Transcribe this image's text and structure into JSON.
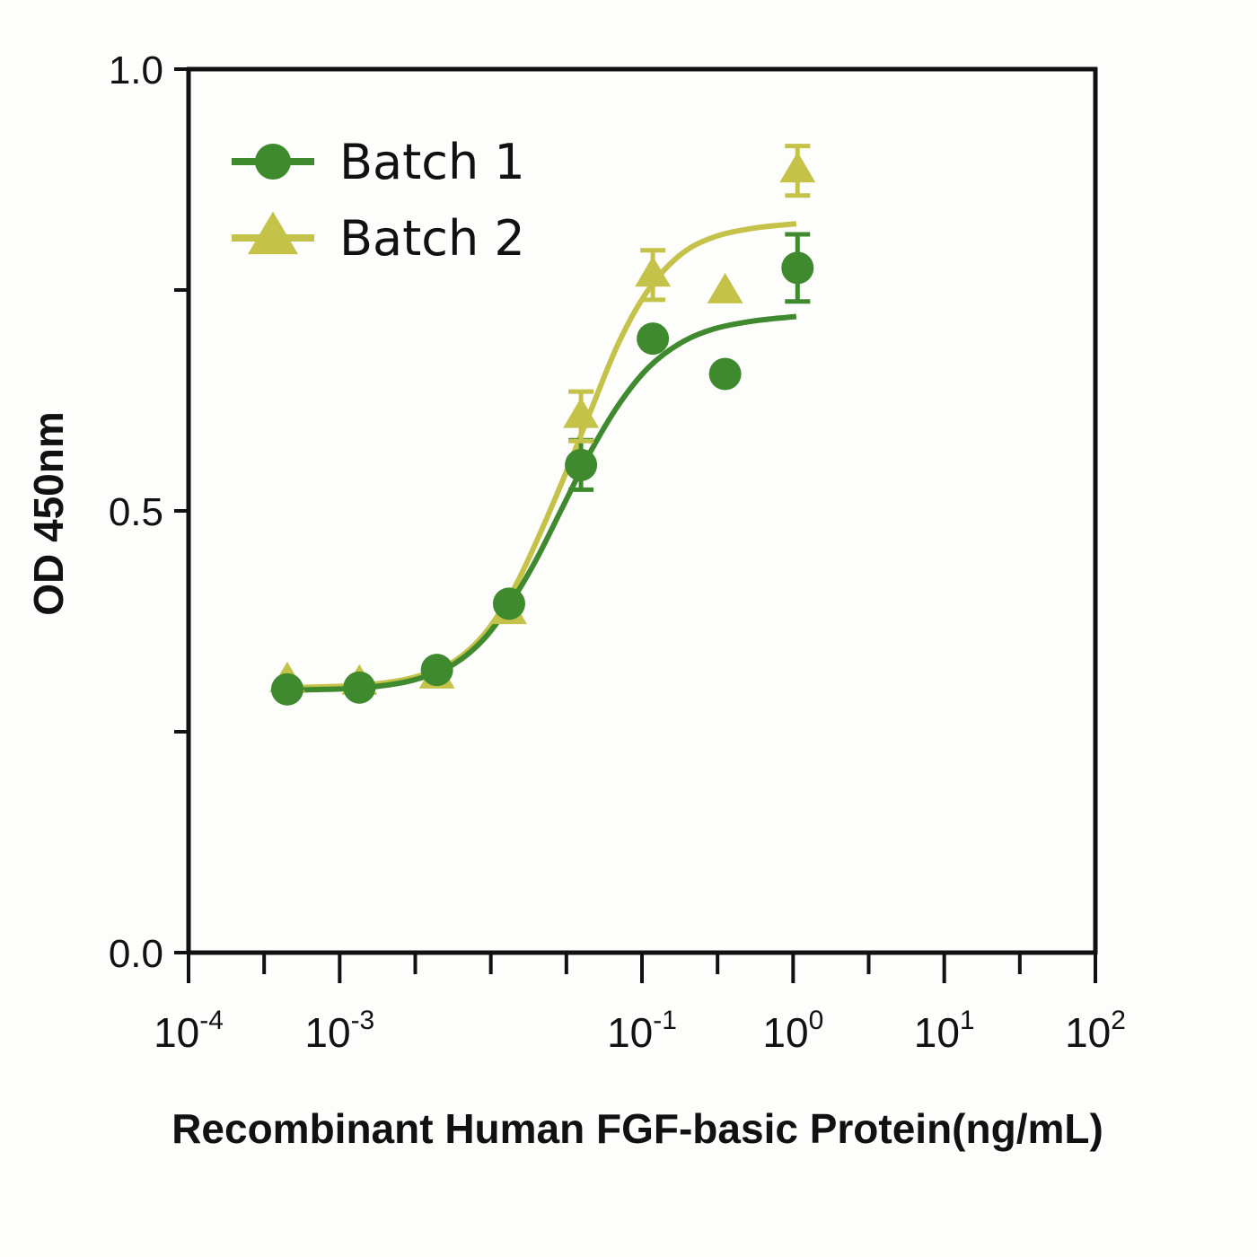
{
  "chart_data": {
    "type": "scatter",
    "xlabel": "Recombinant Human FGF-basic Protein(ng/mL)",
    "ylabel": "OD 450nm",
    "xscale": "log",
    "xlim": [
      0.0001,
      100
    ],
    "ylim": [
      0.0,
      1.0
    ],
    "x_ticks": [
      {
        "base": "10",
        "exp": "-4"
      },
      {
        "base": "10",
        "exp": "-3"
      },
      {
        "base": "10",
        "exp": "-1"
      },
      {
        "base": "10",
        "exp": "0"
      },
      {
        "base": "10",
        "exp": "1"
      },
      {
        "base": "10",
        "exp": "2"
      }
    ],
    "y_ticks": [
      "0.0",
      "0.5",
      "1.0"
    ],
    "legend_position": "top-left",
    "grid": false,
    "series": [
      {
        "name": "Batch 1",
        "marker": "circle",
        "color": "#3f8a2e",
        "points": [
          {
            "x": 0.00045,
            "y": 0.298
          },
          {
            "x": 0.00135,
            "y": 0.3
          },
          {
            "x": 0.0044,
            "y": 0.32
          },
          {
            "x": 0.0132,
            "y": 0.395
          },
          {
            "x": 0.0395,
            "y": 0.552,
            "err": 0.028
          },
          {
            "x": 0.118,
            "y": 0.695
          },
          {
            "x": 0.355,
            "y": 0.655
          },
          {
            "x": 1.07,
            "y": 0.775,
            "err": 0.038
          }
        ],
        "fit": [
          {
            "x": 0.00045,
            "y": 0.297
          },
          {
            "x": 0.0008,
            "y": 0.298
          },
          {
            "x": 0.0015,
            "y": 0.3
          },
          {
            "x": 0.003,
            "y": 0.308
          },
          {
            "x": 0.0055,
            "y": 0.325
          },
          {
            "x": 0.009,
            "y": 0.355
          },
          {
            "x": 0.014,
            "y": 0.4
          },
          {
            "x": 0.02,
            "y": 0.445
          },
          {
            "x": 0.03,
            "y": 0.505
          },
          {
            "x": 0.045,
            "y": 0.565
          },
          {
            "x": 0.07,
            "y": 0.62
          },
          {
            "x": 0.11,
            "y": 0.662
          },
          {
            "x": 0.18,
            "y": 0.69
          },
          {
            "x": 0.3,
            "y": 0.706
          },
          {
            "x": 0.55,
            "y": 0.715
          },
          {
            "x": 1.05,
            "y": 0.72
          }
        ]
      },
      {
        "name": "Batch 2",
        "marker": "triangle",
        "color": "#c5c24a",
        "points": [
          {
            "x": 0.00045,
            "y": 0.308
          },
          {
            "x": 0.00135,
            "y": 0.305
          },
          {
            "x": 0.0044,
            "y": 0.312
          },
          {
            "x": 0.0132,
            "y": 0.385
          },
          {
            "x": 0.0395,
            "y": 0.607,
            "err": 0.028
          },
          {
            "x": 0.118,
            "y": 0.767,
            "err": 0.028
          },
          {
            "x": 0.355,
            "y": 0.748
          },
          {
            "x": 1.07,
            "y": 0.885,
            "err": 0.028
          }
        ],
        "fit": [
          {
            "x": 0.00045,
            "y": 0.3
          },
          {
            "x": 0.0008,
            "y": 0.301
          },
          {
            "x": 0.0015,
            "y": 0.303
          },
          {
            "x": 0.003,
            "y": 0.311
          },
          {
            "x": 0.0055,
            "y": 0.328
          },
          {
            "x": 0.009,
            "y": 0.36
          },
          {
            "x": 0.014,
            "y": 0.41
          },
          {
            "x": 0.02,
            "y": 0.465
          },
          {
            "x": 0.03,
            "y": 0.535
          },
          {
            "x": 0.045,
            "y": 0.61
          },
          {
            "x": 0.07,
            "y": 0.69
          },
          {
            "x": 0.11,
            "y": 0.75
          },
          {
            "x": 0.18,
            "y": 0.79
          },
          {
            "x": 0.3,
            "y": 0.81
          },
          {
            "x": 0.55,
            "y": 0.82
          },
          {
            "x": 1.05,
            "y": 0.825
          }
        ]
      }
    ]
  }
}
